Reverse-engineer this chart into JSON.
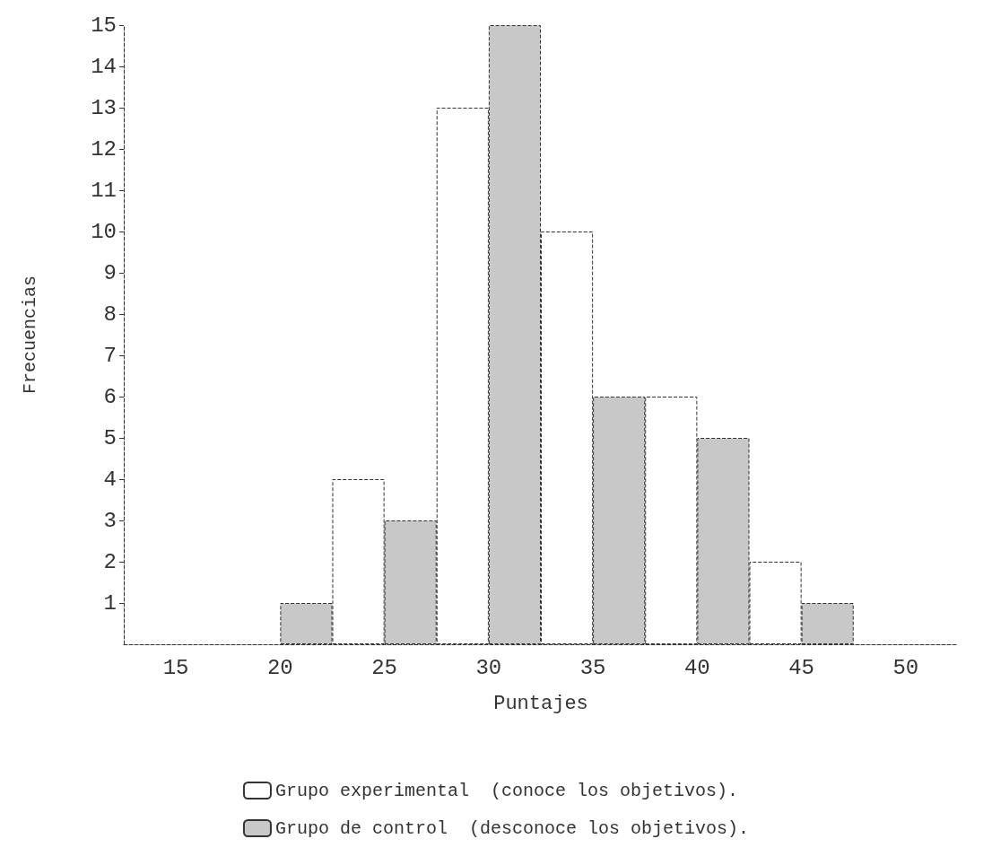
{
  "chart_data": {
    "type": "bar",
    "xlabel": "Puntajes",
    "ylabel": "Frecuencias",
    "categories": [
      "15",
      "20",
      "25",
      "30",
      "35",
      "40",
      "45",
      "50"
    ],
    "series": [
      {
        "name": "Grupo experimental  (conoce los objetivos).",
        "color": "#ffffff",
        "values": [
          0,
          0,
          4,
          13,
          10,
          6,
          2,
          0
        ]
      },
      {
        "name": "Grupo de control  (desconoce los objetivos).",
        "color": "#c8c8c8",
        "values": [
          0,
          1,
          3,
          15,
          6,
          5,
          1,
          0
        ]
      }
    ],
    "ylim": [
      0,
      15
    ],
    "yticks": [
      1,
      2,
      3,
      4,
      5,
      6,
      7,
      8,
      9,
      10,
      11,
      12,
      13,
      14,
      15
    ],
    "grid": false,
    "legend": "bottom"
  }
}
